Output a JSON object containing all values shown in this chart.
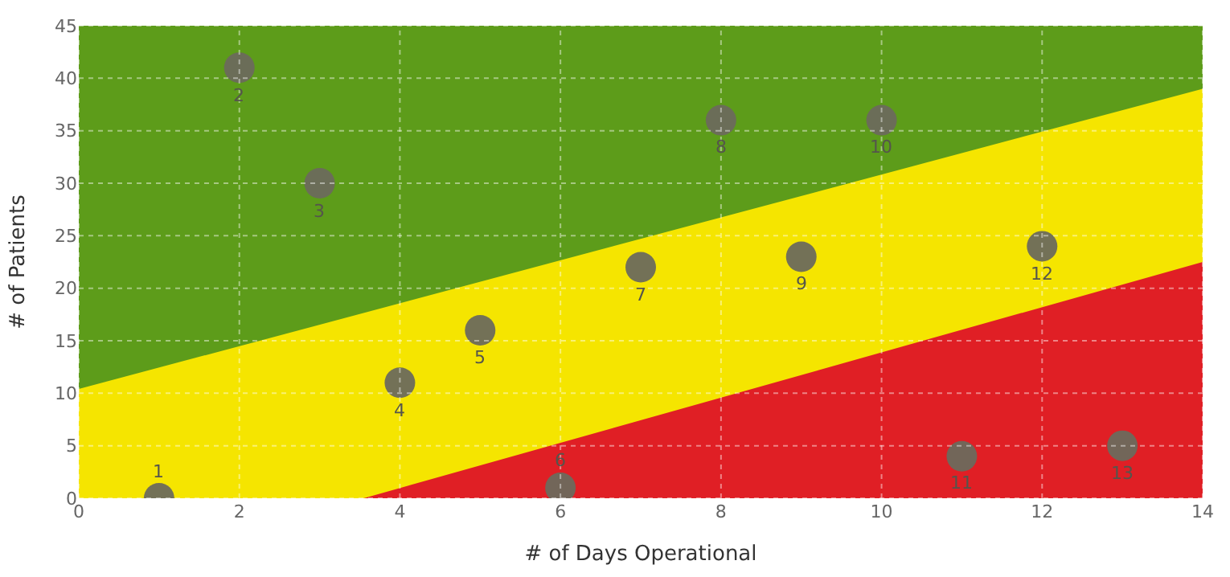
{
  "chart_data": {
    "type": "scatter",
    "xlabel": "# of Days Operational",
    "ylabel": "# of Patients",
    "xlim": [
      0,
      14
    ],
    "xticks": [
      0,
      2,
      4,
      6,
      8,
      10,
      12,
      14
    ],
    "ylim": [
      0,
      45
    ],
    "yticks": [
      0,
      5,
      10,
      15,
      20,
      25,
      30,
      35,
      40,
      45
    ],
    "grid": true,
    "series": [
      {
        "type": "area",
        "color": "#5d9c1a",
        "x": [
          0,
          14
        ],
        "values": [
          45,
          45
        ]
      },
      {
        "type": "area",
        "color": "#f5e500",
        "x": [
          0,
          14
        ],
        "values": [
          10.4,
          39
        ]
      },
      {
        "type": "area",
        "color": "#e01f25",
        "x": [
          0,
          3.55,
          14
        ],
        "values": [
          0,
          0,
          22.5
        ]
      },
      {
        "color": "#6b6a5c",
        "marker": "circle",
        "x": [
          1,
          2,
          3,
          4,
          5,
          6,
          7,
          8,
          9,
          10,
          11,
          12,
          13
        ],
        "values": [
          0,
          41,
          30,
          11,
          16,
          1,
          22,
          36,
          23,
          36,
          4,
          24,
          5
        ]
      }
    ],
    "annotations": [
      {
        "text": "1",
        "x": 1,
        "y": 0
      },
      {
        "text": "2",
        "x": 2,
        "y": 41
      },
      {
        "text": "3",
        "x": 3,
        "y": 30
      },
      {
        "text": "4",
        "x": 4,
        "y": 11
      },
      {
        "text": "5",
        "x": 5,
        "y": 16
      },
      {
        "text": "6",
        "x": 6,
        "y": 1
      },
      {
        "text": "7",
        "x": 7,
        "y": 22
      },
      {
        "text": "8",
        "x": 8,
        "y": 36
      },
      {
        "text": "9",
        "x": 9,
        "y": 23
      },
      {
        "text": "10",
        "x": 10,
        "y": 36
      },
      {
        "text": "11",
        "x": 11,
        "y": 4
      },
      {
        "text": "12",
        "x": 12,
        "y": 24
      },
      {
        "text": "13",
        "x": 13,
        "y": 5
      }
    ]
  }
}
